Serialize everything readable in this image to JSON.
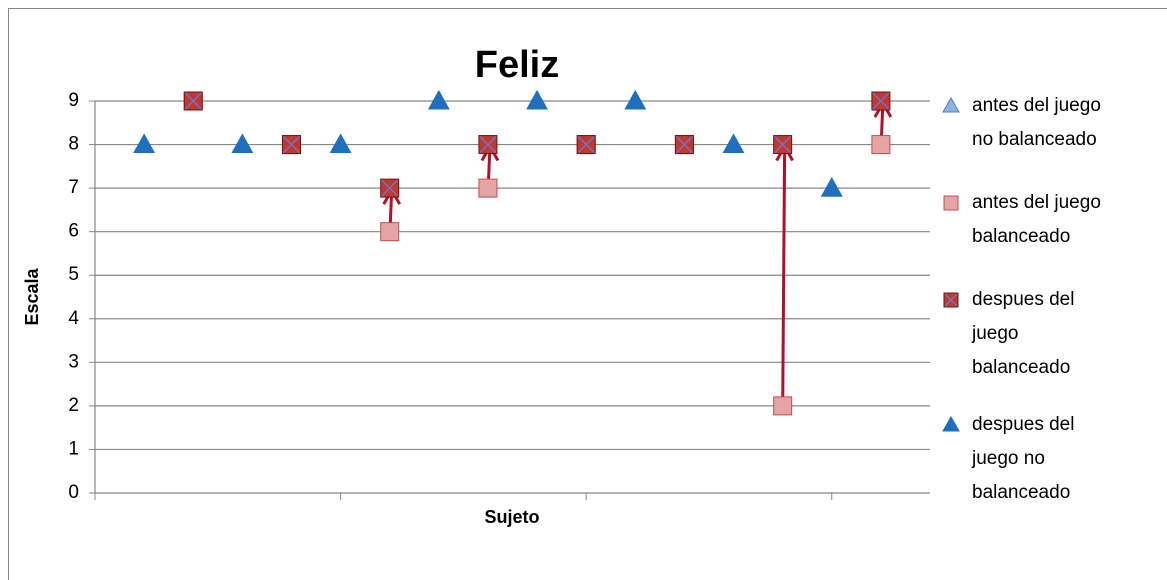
{
  "chart_data": {
    "type": "scatter",
    "title": "Feliz",
    "x_label": "Sujeto",
    "y_label": "Escala",
    "xlim": [
      0,
      17
    ],
    "xticks": [
      0,
      5,
      10,
      15
    ],
    "ylim": [
      0,
      9
    ],
    "yticks": [
      0,
      1,
      2,
      3,
      4,
      5,
      6,
      7,
      8,
      9
    ],
    "grid": true,
    "legend": "right",
    "series": [
      {
        "name": "antes del juego no balanceado",
        "color": "#8db3e2",
        "marker": "triangle",
        "x": [
          1,
          3,
          5,
          7,
          9,
          11,
          13,
          15
        ],
        "values": [
          8,
          8,
          8,
          9,
          9,
          9,
          8,
          7
        ]
      },
      {
        "name": "antes del juego balanceado",
        "color": "#e6a3a3",
        "marker": "square",
        "x": [
          2,
          4,
          6,
          8,
          10,
          12,
          14,
          16
        ],
        "values": [
          9,
          8,
          6,
          7,
          8,
          8,
          2,
          8
        ]
      },
      {
        "name": "despues del juego balanceado",
        "color": "#c0392b",
        "marker": "square-x",
        "x": [
          2,
          4,
          6,
          8,
          10,
          12,
          14,
          16
        ],
        "values": [
          9,
          8,
          7,
          8,
          8,
          8,
          8,
          9
        ]
      },
      {
        "name": "despues del juego no balanceado",
        "color": "#1f6fbf",
        "marker": "triangle",
        "x": [
          1,
          3,
          5,
          7,
          9,
          11,
          13,
          15
        ],
        "values": [
          8,
          8,
          8,
          9,
          9,
          9,
          8,
          7
        ]
      }
    ],
    "arrows": {
      "color": "#b0102a",
      "from": 1,
      "to": 2
    }
  }
}
